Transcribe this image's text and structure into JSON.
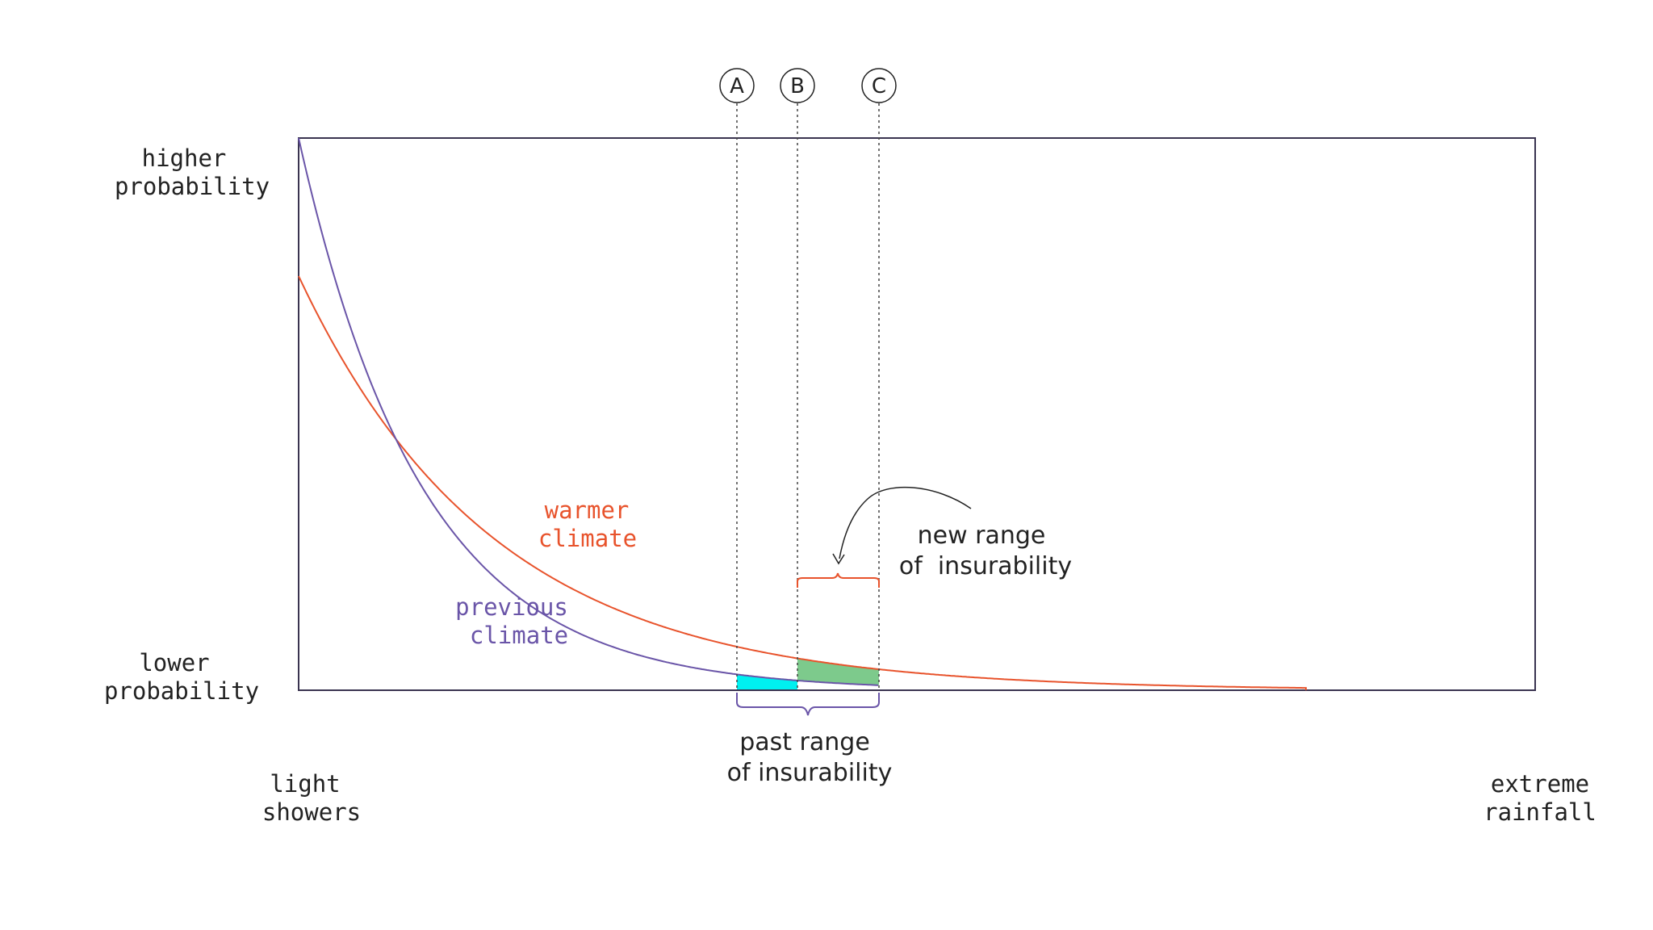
{
  "y_axis": {
    "top_label": [
      "higher",
      "probability"
    ],
    "bottom_label": [
      "lower",
      "probability"
    ]
  },
  "x_axis": {
    "left_label": [
      "light",
      "showers"
    ],
    "right_label": [
      "extreme",
      "rainfall"
    ]
  },
  "curves": {
    "warmer": {
      "label": [
        "warmer",
        "climate"
      ],
      "color": "#e8532c"
    },
    "previous": {
      "label": [
        "previous",
        "climate"
      ],
      "color": "#6a55a8"
    }
  },
  "markers": [
    "A",
    "B",
    "C"
  ],
  "annotations": {
    "new_range": [
      "new range",
      "of  insurability"
    ],
    "past_range": [
      "past range",
      "of insurability"
    ]
  },
  "colors": {
    "frame": "#3a3450",
    "past_fill": "#00f0f0",
    "new_fill": "#7dca8c",
    "guides": "#444444"
  }
}
